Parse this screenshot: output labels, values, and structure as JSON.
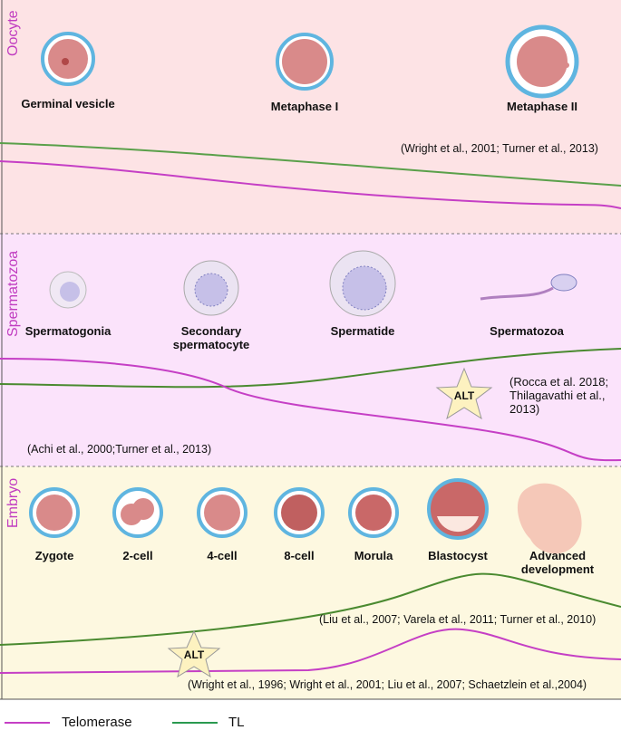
{
  "panels": [
    {
      "label": "Oocyte",
      "stages": [
        "Germinal vesicle",
        "Metaphase I",
        "Metaphase II"
      ],
      "citations": [
        "(Wright et al., 2001; Turner et al., 2013)"
      ]
    },
    {
      "label": "Spermatozoa",
      "stages": [
        "Spermatogonia",
        "Secondary spermatocyte",
        "Spermatide",
        "Spermatozoa"
      ],
      "citations": [
        "(Rocca et al. 2018; Thilagavathi et al., 2013)",
        "(Achi et al., 2000;Turner et al., 2013)"
      ],
      "badge": "ALT"
    },
    {
      "label": "Embryo",
      "stages": [
        "Zygote",
        "2-cell",
        "4-cell",
        "8-cell",
        "Morula",
        "Blastocyst",
        "Advanced development"
      ],
      "citations": [
        "(Liu et al., 2007; Varela et al., 2011; Turner et al., 2010)",
        "(Wright et al., 1996; Wright et al., 2001; Liu et al., 2007; Schaetzlein et al.,2004)"
      ],
      "badge": "ALT"
    }
  ],
  "legend": [
    "Telomerase",
    "TL"
  ]
}
